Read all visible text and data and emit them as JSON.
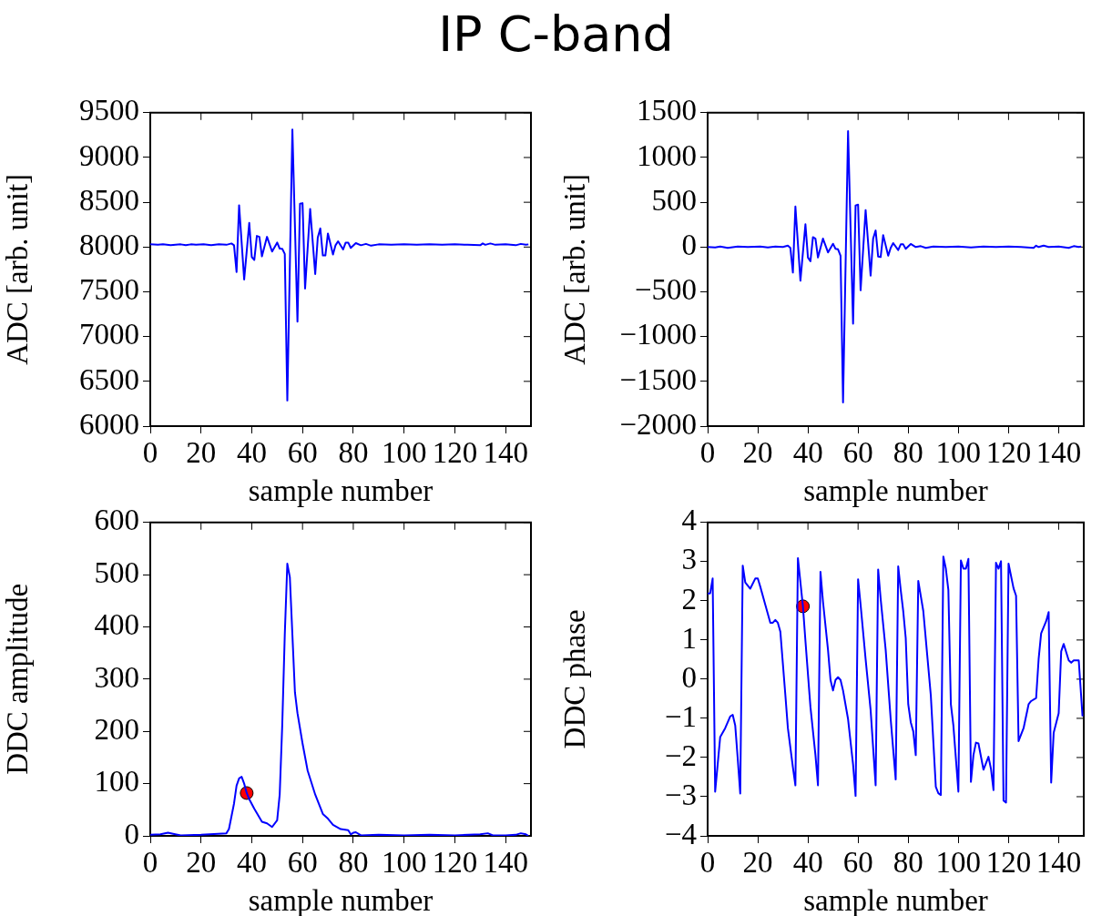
{
  "chart_data": [
    {
      "type": "line",
      "title": "IP C-band",
      "xlabel": "sample number",
      "ylabel": "ADC [arb. unit]",
      "xlim": [
        0,
        150
      ],
      "xticks": [
        0,
        20,
        40,
        60,
        80,
        100,
        120,
        140
      ],
      "ylim": [
        6000,
        9500
      ],
      "yticks": [
        6000,
        6500,
        7000,
        7500,
        8000,
        8500,
        9000,
        9500
      ],
      "grid": false,
      "legend": false,
      "series": [
        {
          "color": "#0000ff",
          "marker": "none",
          "x": [
            0,
            3,
            5,
            8,
            10,
            12,
            14,
            16,
            18,
            21,
            24,
            27,
            30,
            32,
            33,
            34,
            35,
            37,
            39,
            40,
            41,
            42,
            43,
            44,
            46,
            48,
            50,
            51,
            52,
            53,
            54,
            56,
            58,
            59,
            60,
            61,
            63,
            65,
            66,
            67,
            68,
            69,
            70,
            72,
            73,
            74,
            76,
            77,
            78,
            79,
            81,
            83,
            85,
            87,
            90,
            95,
            100,
            105,
            110,
            115,
            120,
            125,
            130,
            131,
            132,
            134,
            136,
            140,
            144,
            146,
            148,
            149
          ],
          "values": [
            8030,
            8025,
            8030,
            8020,
            8025,
            8030,
            8020,
            8030,
            8025,
            8030,
            8022,
            8030,
            8025,
            8040,
            8020,
            7721,
            8467,
            7637,
            8269,
            7889,
            7856,
            8124,
            8114,
            7896,
            8114,
            7950,
            8050,
            7983,
            7980,
            7923,
            6286,
            9312,
            7168,
            8483,
            8490,
            7537,
            8426,
            7698,
            8107,
            8208,
            7906,
            7906,
            8151,
            7916,
            8020,
            8064,
            7973,
            8050,
            8050,
            7990,
            8044,
            8020,
            8035,
            8015,
            8030,
            8025,
            8030,
            8025,
            8030,
            8025,
            8030,
            8025,
            8020,
            8040,
            8025,
            8040,
            8025,
            8030,
            8020,
            8035,
            8025,
            8030
          ]
        }
      ]
    },
    {
      "type": "line",
      "xlabel": "sample number",
      "ylabel": "ADC [arb. unit]",
      "xlim": [
        0,
        150
      ],
      "xticks": [
        0,
        20,
        40,
        60,
        80,
        100,
        120,
        140
      ],
      "ylim": [
        -2000,
        1500
      ],
      "yticks": [
        {
          "value": -2000,
          "label": "−2000"
        },
        {
          "value": -1500,
          "label": "−1500"
        },
        {
          "value": -1000,
          "label": "−1000"
        },
        {
          "value": -500,
          "label": "−500"
        },
        0,
        500,
        1000,
        1500
      ],
      "grid": false,
      "legend": false,
      "series": [
        {
          "color": "#0000ff",
          "marker": "none",
          "x": [
            0,
            3,
            5,
            8,
            12,
            16,
            21,
            24,
            27,
            30,
            32,
            33,
            34,
            35,
            37,
            39,
            40,
            41,
            42,
            43,
            44,
            46,
            48,
            50,
            51,
            52,
            53,
            54,
            56,
            58,
            59,
            60,
            61,
            63,
            65,
            66,
            67,
            68,
            69,
            70,
            72,
            73,
            74,
            76,
            77,
            78,
            79,
            81,
            83,
            85,
            87,
            90,
            95,
            100,
            105,
            110,
            115,
            120,
            125,
            130,
            131,
            132,
            134,
            136,
            140,
            144,
            146,
            148,
            149
          ],
          "values": [
            0,
            -5,
            5,
            -10,
            5,
            0,
            5,
            -5,
            5,
            0,
            15,
            -10,
            -285,
            453,
            -376,
            255,
            -117,
            -158,
            111,
            94,
            -117,
            94,
            -60,
            37,
            -20,
            -25,
            -97,
            -1735,
            1295,
            -856,
            463,
            473,
            -483,
            413,
            -319,
            94,
            185,
            -107,
            -112,
            134,
            -97,
            -10,
            44,
            -34,
            30,
            30,
            -20,
            34,
            0,
            10,
            -10,
            5,
            0,
            5,
            -5,
            5,
            0,
            5,
            0,
            -10,
            15,
            0,
            15,
            0,
            5,
            -10,
            10,
            0,
            5
          ]
        }
      ]
    },
    {
      "type": "line",
      "xlabel": "sample number",
      "ylabel": "DDC amplitude",
      "xlim": [
        0,
        150
      ],
      "xticks": [
        0,
        20,
        40,
        60,
        80,
        100,
        120,
        140
      ],
      "ylim": [
        0,
        600
      ],
      "yticks": [
        0,
        100,
        200,
        300,
        400,
        500,
        600
      ],
      "grid": false,
      "legend": false,
      "series": [
        {
          "color": "#0000ff",
          "marker": "none",
          "x": [
            0,
            4,
            7,
            9,
            12,
            20,
            30,
            31,
            33,
            34,
            35,
            36,
            37,
            38,
            39,
            41,
            44,
            46,
            48,
            50,
            51,
            52,
            53,
            54,
            55,
            56,
            57,
            58,
            60,
            62,
            65,
            68,
            70,
            72,
            75,
            78,
            79,
            80,
            81,
            83,
            90,
            100,
            110,
            120,
            130,
            133,
            135,
            140,
            144,
            146,
            148,
            149
          ],
          "values": [
            2,
            3,
            6,
            4,
            1,
            2,
            5,
            13,
            62,
            96,
            110,
            113,
            100,
            82,
            70,
            52,
            27,
            24,
            17,
            30,
            79,
            212,
            385,
            521,
            495,
            385,
            275,
            235,
            177,
            125,
            79,
            42,
            33,
            21,
            13,
            11,
            3,
            6,
            7,
            1,
            2,
            1,
            2,
            1,
            3,
            5,
            1,
            1,
            2,
            5,
            3,
            0
          ]
        },
        {
          "type": "scatter",
          "color": "#ff0000",
          "marker": "circle",
          "x": [
            38
          ],
          "values": [
            82
          ]
        }
      ]
    },
    {
      "type": "line",
      "xlabel": "sample number",
      "ylabel": "DDC phase",
      "xlim": [
        0,
        150
      ],
      "xticks": [
        0,
        20,
        40,
        60,
        80,
        100,
        120,
        140
      ],
      "ylim": [
        -4,
        4
      ],
      "yticks": [
        {
          "value": -4,
          "label": "−4"
        },
        {
          "value": -3,
          "label": "−3"
        },
        {
          "value": -2,
          "label": "−2"
        },
        {
          "value": -1,
          "label": "−1"
        },
        0,
        1,
        2,
        3,
        4
      ],
      "grid": false,
      "legend": false,
      "series": [
        {
          "color": "#0000ff",
          "marker": "none",
          "x": [
            0,
            1,
            2,
            3,
            4,
            5,
            7,
            9,
            10,
            11,
            12,
            13,
            14,
            15,
            17,
            19,
            20,
            21,
            23,
            25,
            26,
            27,
            28,
            29,
            31,
            32,
            34,
            35,
            36,
            38,
            39,
            41,
            43,
            44,
            45,
            46,
            48,
            49,
            50,
            51,
            52,
            53,
            54,
            56,
            58,
            59,
            60,
            61,
            63,
            65,
            67,
            68,
            69,
            71,
            73,
            75,
            76,
            77,
            78,
            79,
            80,
            81,
            82,
            83,
            84,
            86,
            89,
            91,
            92,
            93,
            94,
            95,
            96,
            97,
            98,
            100,
            101,
            102,
            103,
            104,
            105,
            106,
            107,
            108,
            110,
            112,
            113,
            114,
            115,
            116,
            117,
            118,
            119,
            120,
            122,
            123,
            124,
            126,
            128,
            129,
            131,
            132,
            133,
            135,
            136,
            137,
            138,
            140,
            141,
            142,
            144,
            145,
            146,
            148,
            149.5
          ],
          "values": [
            2.19,
            2.19,
            2.57,
            -2.87,
            -2.18,
            -1.48,
            -1.25,
            -0.95,
            -0.91,
            -1.18,
            -2.03,
            -2.92,
            2.9,
            2.47,
            2.31,
            2.57,
            2.57,
            2.36,
            1.9,
            1.44,
            1.44,
            1.51,
            1.44,
            1.21,
            -0.41,
            -1.25,
            -2.25,
            -2.71,
            3.09,
            1.86,
            0.98,
            -0.71,
            -1.94,
            -2.71,
            2.74,
            1.98,
            0.75,
            -0.02,
            -0.29,
            -0.02,
            0.05,
            -0.02,
            -0.29,
            -1.02,
            -2.18,
            -2.98,
            2.55,
            1.9,
            0.51,
            -0.79,
            -2.71,
            2.8,
            2.05,
            0.75,
            -1.02,
            -2.56,
            2.88,
            2.28,
            1.74,
            1.05,
            -0.64,
            -1.1,
            -1.33,
            -1.94,
            2.51,
            1.74,
            -0.41,
            -2.75,
            -2.91,
            -2.96,
            3.13,
            2.82,
            2.28,
            -0.64,
            -1.18,
            -2.87,
            3.03,
            2.82,
            2.82,
            3.07,
            -2.62,
            -1.94,
            -1.62,
            -1.64,
            -2.31,
            -1.98,
            -2.29,
            -2.83,
            2.97,
            2.82,
            3.01,
            -3.1,
            -3.15,
            2.95,
            2.32,
            2.13,
            -1.58,
            -1.25,
            -0.64,
            -0.56,
            -0.48,
            0.51,
            1.17,
            1.48,
            1.71,
            -2.64,
            -1.37,
            -0.87,
            0.71,
            0.9,
            0.48,
            0.42,
            0.48,
            0.48,
            -0.95
          ]
        },
        {
          "type": "scatter",
          "color": "#ff0000",
          "marker": "circle",
          "x": [
            38
          ],
          "values": [
            1.86
          ]
        }
      ]
    }
  ]
}
